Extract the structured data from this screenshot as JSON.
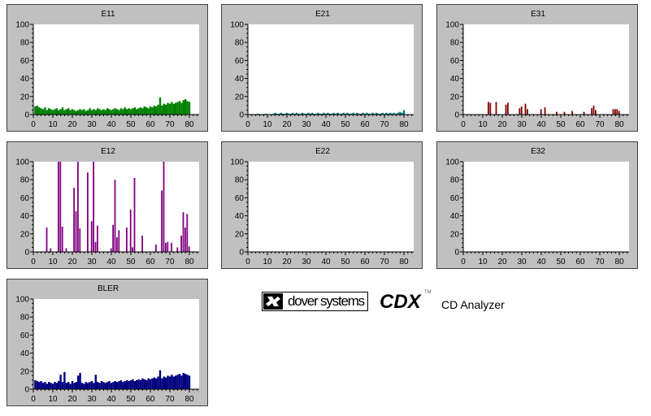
{
  "colors": {
    "panel_bg": "#c0c0c0",
    "plot_bg": "#ffffff",
    "axis": "#000000"
  },
  "chart_data": [
    {
      "type": "bar",
      "title": "E11",
      "color": "#008000",
      "ylim": [
        0,
        100
      ],
      "xlim": [
        0,
        85
      ],
      "yticks": [
        "0",
        "20",
        "40",
        "60",
        "80",
        "100"
      ],
      "xticks": [
        "0",
        "10",
        "20",
        "30",
        "40",
        "50",
        "60",
        "70",
        "80"
      ],
      "x": [
        1,
        2,
        3,
        4,
        5,
        6,
        7,
        8,
        9,
        10,
        11,
        12,
        13,
        14,
        15,
        16,
        17,
        18,
        19,
        20,
        21,
        22,
        23,
        24,
        25,
        26,
        27,
        28,
        29,
        30,
        31,
        32,
        33,
        34,
        35,
        36,
        37,
        38,
        39,
        40,
        41,
        42,
        43,
        44,
        45,
        46,
        47,
        48,
        49,
        50,
        51,
        52,
        53,
        54,
        55,
        56,
        57,
        58,
        59,
        60,
        61,
        62,
        63,
        64,
        65,
        66,
        67,
        68,
        69,
        70,
        71,
        72,
        73,
        74,
        75,
        76,
        77,
        78,
        79,
        80
      ],
      "values": [
        9,
        10,
        8,
        7,
        6,
        8,
        5,
        7,
        6,
        5,
        6,
        7,
        5,
        6,
        8,
        5,
        6,
        7,
        5,
        6,
        5,
        4,
        5,
        6,
        5,
        6,
        4,
        5,
        7,
        5,
        6,
        5,
        7,
        6,
        5,
        6,
        5,
        7,
        6,
        5,
        6,
        7,
        6,
        5,
        7,
        6,
        8,
        6,
        7,
        6,
        7,
        8,
        6,
        7,
        8,
        7,
        9,
        8,
        7,
        9,
        8,
        10,
        9,
        11,
        19,
        10,
        12,
        11,
        13,
        12,
        14,
        12,
        13,
        14,
        15,
        13,
        16,
        17,
        15,
        14
      ]
    },
    {
      "type": "bar",
      "title": "E21",
      "color": "#008080",
      "ylim": [
        0,
        100
      ],
      "xlim": [
        0,
        85
      ],
      "yticks": [
        "0",
        "20",
        "40",
        "60",
        "80",
        "100"
      ],
      "xticks": [
        "0",
        "10",
        "20",
        "30",
        "40",
        "50",
        "60",
        "70",
        "80"
      ],
      "x": [
        1,
        2,
        3,
        4,
        5,
        6,
        7,
        8,
        9,
        10,
        11,
        12,
        13,
        14,
        15,
        16,
        17,
        18,
        19,
        20,
        21,
        22,
        23,
        24,
        25,
        26,
        27,
        28,
        29,
        30,
        31,
        32,
        33,
        34,
        35,
        36,
        37,
        38,
        39,
        40,
        41,
        42,
        43,
        44,
        45,
        46,
        47,
        48,
        49,
        50,
        51,
        52,
        53,
        54,
        55,
        56,
        57,
        58,
        59,
        60,
        61,
        62,
        63,
        64,
        65,
        66,
        67,
        68,
        69,
        70,
        71,
        72,
        73,
        74,
        75,
        76,
        77,
        78,
        79,
        80
      ],
      "values": [
        0,
        0,
        0,
        0,
        1,
        0,
        0,
        0,
        1,
        0,
        0,
        0,
        1,
        2,
        1,
        1,
        2,
        1,
        1,
        2,
        1,
        1,
        2,
        1,
        2,
        1,
        1,
        2,
        1,
        1,
        2,
        1,
        2,
        1,
        1,
        2,
        1,
        1,
        2,
        1,
        2,
        1,
        1,
        2,
        1,
        2,
        1,
        1,
        2,
        1,
        2,
        1,
        1,
        2,
        1,
        2,
        1,
        1,
        2,
        1,
        2,
        1,
        1,
        2,
        1,
        2,
        1,
        1,
        2,
        1,
        2,
        1,
        2,
        1,
        2,
        1,
        2,
        3,
        2,
        5
      ]
    },
    {
      "type": "bar",
      "title": "E31",
      "color": "#800000",
      "ylim": [
        0,
        100
      ],
      "xlim": [
        0,
        85
      ],
      "yticks": [
        "0",
        "20",
        "40",
        "60",
        "80",
        "100"
      ],
      "xticks": [
        "0",
        "10",
        "20",
        "30",
        "40",
        "50",
        "60",
        "70",
        "80"
      ],
      "x": [
        13,
        14,
        17,
        22,
        23,
        29,
        30,
        32,
        33,
        40,
        42,
        48,
        52,
        56,
        62,
        66,
        67,
        68,
        77,
        78,
        79,
        80
      ],
      "values": [
        14,
        13,
        14,
        11,
        13,
        7,
        9,
        12,
        6,
        6,
        8,
        3,
        3,
        4,
        3,
        7,
        10,
        5,
        6,
        6,
        6,
        4
      ]
    },
    {
      "type": "bar",
      "title": "E12",
      "color": "#800080",
      "ylim": [
        0,
        100
      ],
      "xlim": [
        0,
        85
      ],
      "yticks": [
        "0",
        "20",
        "40",
        "60",
        "80",
        "100"
      ],
      "xticks": [
        "0",
        "10",
        "20",
        "30",
        "40",
        "50",
        "60",
        "70",
        "80"
      ],
      "x": [
        7,
        9,
        13,
        14,
        15,
        17,
        21,
        22,
        23,
        24,
        28,
        30,
        31,
        32,
        33,
        40,
        41,
        42,
        43,
        44,
        48,
        50,
        51,
        52,
        56,
        63,
        66,
        67,
        68,
        69,
        71,
        74,
        76,
        77,
        78,
        79,
        80
      ],
      "values": [
        27,
        4,
        100,
        100,
        28,
        4,
        71,
        45,
        100,
        26,
        88,
        34,
        100,
        11,
        29,
        4,
        30,
        80,
        16,
        24,
        27,
        47,
        5,
        82,
        18,
        8,
        68,
        100,
        10,
        11,
        10,
        5,
        18,
        44,
        27,
        42,
        6
      ]
    },
    {
      "type": "bar",
      "title": "E22",
      "color": "#000080",
      "ylim": [
        0,
        100
      ],
      "xlim": [
        0,
        85
      ],
      "yticks": [
        "0",
        "20",
        "40",
        "60",
        "80",
        "100"
      ],
      "xticks": [
        "0",
        "10",
        "20",
        "30",
        "40",
        "50",
        "60",
        "70",
        "80"
      ],
      "x": [],
      "values": []
    },
    {
      "type": "bar",
      "title": "E32",
      "color": "#000080",
      "ylim": [
        0,
        100
      ],
      "xlim": [
        0,
        85
      ],
      "yticks": [
        "0",
        "20",
        "40",
        "60",
        "80",
        "100"
      ],
      "xticks": [
        "0",
        "10",
        "20",
        "30",
        "40",
        "50",
        "60",
        "70",
        "80"
      ],
      "x": [],
      "values": []
    },
    {
      "type": "bar",
      "title": "BLER",
      "color": "#000080",
      "ylim": [
        0,
        100
      ],
      "xlim": [
        0,
        85
      ],
      "yticks": [
        "0",
        "20",
        "40",
        "60",
        "80",
        "100"
      ],
      "xticks": [
        "0",
        "10",
        "20",
        "30",
        "40",
        "50",
        "60",
        "70",
        "80"
      ],
      "x": [
        1,
        2,
        3,
        4,
        5,
        6,
        7,
        8,
        9,
        10,
        11,
        12,
        13,
        14,
        15,
        16,
        17,
        18,
        19,
        20,
        21,
        22,
        23,
        24,
        25,
        26,
        27,
        28,
        29,
        30,
        31,
        32,
        33,
        34,
        35,
        36,
        37,
        38,
        39,
        40,
        41,
        42,
        43,
        44,
        45,
        46,
        47,
        48,
        49,
        50,
        51,
        52,
        53,
        54,
        55,
        56,
        57,
        58,
        59,
        60,
        61,
        62,
        63,
        64,
        65,
        66,
        67,
        68,
        69,
        70,
        71,
        72,
        73,
        74,
        75,
        76,
        77,
        78,
        79,
        80
      ],
      "values": [
        10,
        9,
        8,
        9,
        7,
        8,
        6,
        8,
        7,
        6,
        8,
        7,
        9,
        16,
        8,
        19,
        7,
        8,
        6,
        9,
        7,
        8,
        15,
        18,
        7,
        6,
        8,
        7,
        8,
        9,
        7,
        16,
        8,
        7,
        9,
        8,
        7,
        8,
        9,
        7,
        8,
        9,
        8,
        9,
        10,
        8,
        9,
        10,
        9,
        10,
        11,
        9,
        10,
        11,
        10,
        12,
        11,
        10,
        12,
        11,
        12,
        13,
        12,
        14,
        21,
        12,
        14,
        13,
        15,
        14,
        16,
        14,
        15,
        16,
        17,
        15,
        18,
        17,
        16,
        15
      ]
    }
  ],
  "logo": {
    "brand": "dover systems",
    "product": "CDX",
    "trademark": "TM",
    "subtitle": "CD Analyzer"
  }
}
